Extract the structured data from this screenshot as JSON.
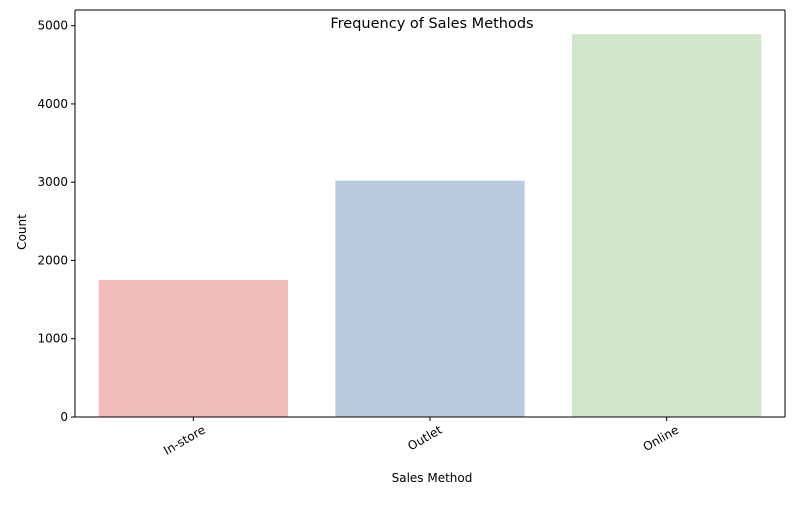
{
  "chart_data": {
    "type": "bar",
    "title": "Frequency of Sales Methods",
    "xlabel": "Sales Method",
    "ylabel": "Count",
    "categories": [
      "In-store",
      "Outlet",
      "Online"
    ],
    "values": [
      1750,
      3020,
      4890
    ],
    "colors": [
      "#f1bbb7",
      "#b9cbdf",
      "#d0e6cb"
    ],
    "ylim": [
      0,
      5200
    ],
    "yticks": [
      0,
      1000,
      2000,
      3000,
      4000,
      5000
    ],
    "grid": false,
    "legend": "none"
  }
}
